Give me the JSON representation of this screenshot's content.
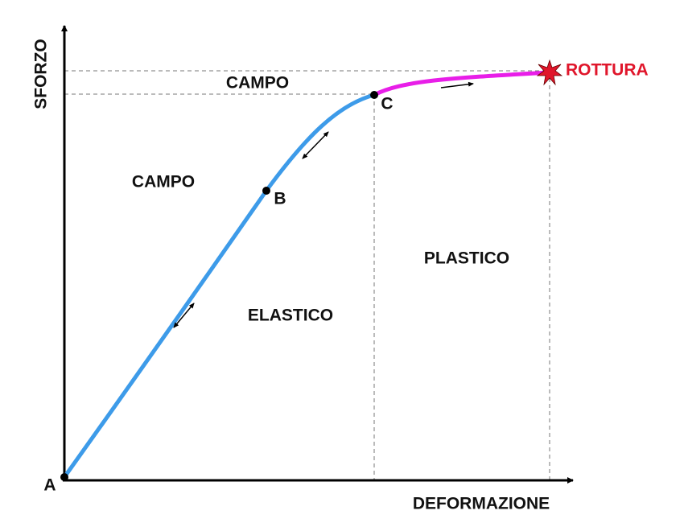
{
  "axes": {
    "y_label": "SFORZO",
    "x_label": "DEFORMAZIONE"
  },
  "regions": {
    "elastic_top": "CAMPO",
    "elastic_left": "CAMPO",
    "elastic": "ELASTICO",
    "plastic": "PLASTICO"
  },
  "points": {
    "a": "A",
    "b": "B",
    "c": "C",
    "break": "ROTTURA"
  }
}
